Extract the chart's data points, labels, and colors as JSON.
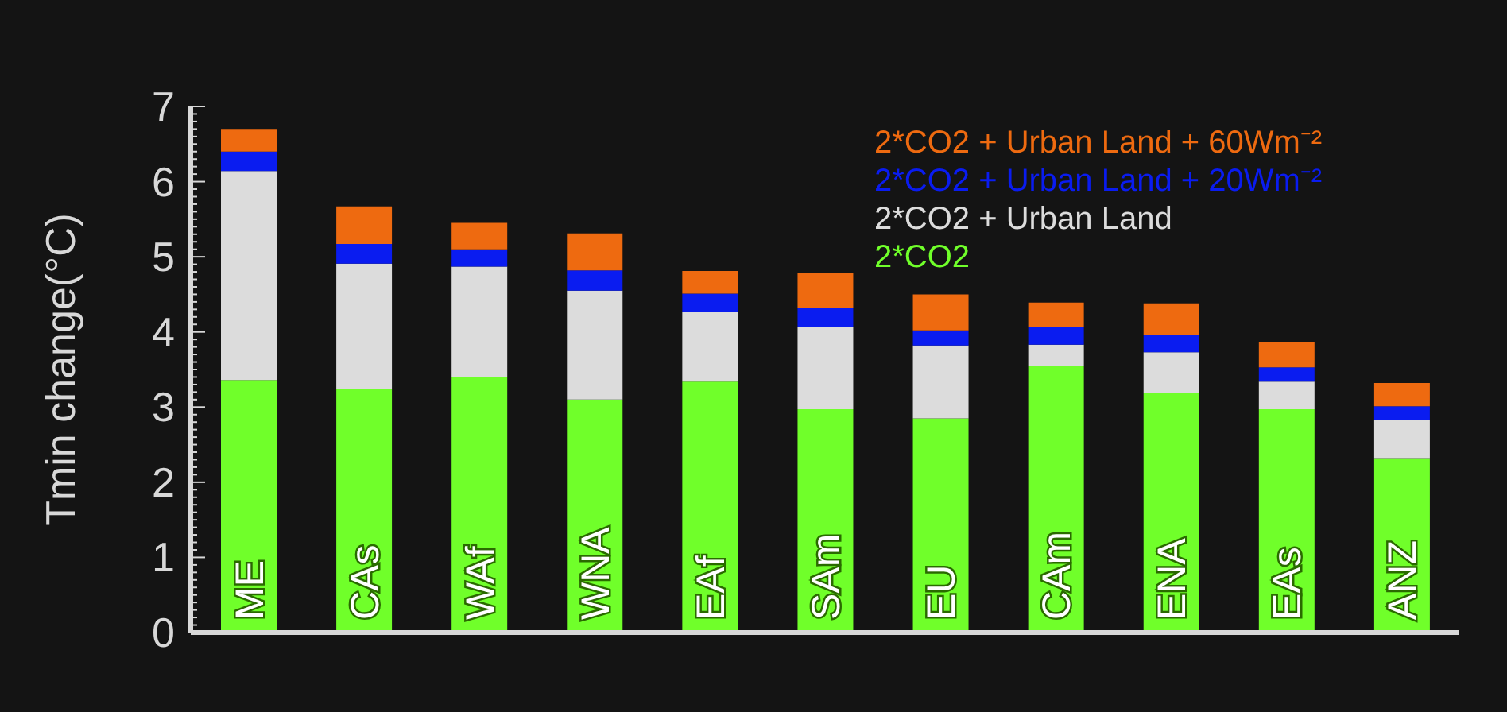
{
  "chart_data": {
    "type": "bar",
    "stacked": true,
    "ylabel": "Tmin change(°C)",
    "categories": [
      "ME",
      "CAs",
      "WAf",
      "WNA",
      "EAf",
      "SAm",
      "EU",
      "CAm",
      "ENA",
      "EAs",
      "ANZ"
    ],
    "series": [
      {
        "name": "2*CO2",
        "color": "#70ff2a",
        "values": [
          3.36,
          3.24,
          3.4,
          3.1,
          3.34,
          2.97,
          2.85,
          3.55,
          3.19,
          2.97,
          2.32
        ]
      },
      {
        "name": "2*CO2 + Urban Land",
        "color": "#dcdcdc",
        "values": [
          2.78,
          1.67,
          1.47,
          1.45,
          0.93,
          1.09,
          0.97,
          0.28,
          0.54,
          0.37,
          0.51
        ]
      },
      {
        "name": "2*CO2 + Urban Land + 20Wm⁻²",
        "color": "#0a1cf0",
        "values": [
          0.26,
          0.26,
          0.23,
          0.27,
          0.24,
          0.26,
          0.2,
          0.24,
          0.23,
          0.19,
          0.18
        ]
      },
      {
        "name": "2*CO2 + Urban Land + 60Wm⁻²",
        "color": "#ee6a10",
        "values": [
          0.3,
          0.5,
          0.35,
          0.49,
          0.3,
          0.46,
          0.48,
          0.32,
          0.42,
          0.34,
          0.31
        ]
      }
    ],
    "ylim": [
      0,
      7
    ],
    "yticks": [
      0,
      {
        "value": 0.1,
        "label": null
      },
      {
        "value": 0.2,
        "label": null
      },
      {
        "value": 0.3,
        "label": null
      },
      {
        "value": 0.4,
        "label": null
      },
      {
        "value": 0.5,
        "label": null
      },
      {
        "value": 0.6,
        "label": null
      },
      {
        "value": 0.7,
        "label": null
      },
      {
        "value": 0.8,
        "label": null
      },
      {
        "value": 0.9,
        "label": null
      },
      1,
      {
        "value": 1.1,
        "label": null
      },
      {
        "value": 1.2,
        "label": null
      },
      {
        "value": 1.3,
        "label": null
      },
      {
        "value": 1.4,
        "label": null
      },
      {
        "value": 1.5,
        "label": null
      },
      {
        "value": 1.6,
        "label": null
      },
      {
        "value": 1.7,
        "label": null
      },
      {
        "value": 1.8,
        "label": null
      },
      {
        "value": 1.9,
        "label": null
      },
      2,
      {
        "value": 2.1,
        "label": null
      },
      {
        "value": 2.2,
        "label": null
      },
      {
        "value": 2.3,
        "label": null
      },
      {
        "value": 2.4,
        "label": null
      },
      {
        "value": 2.5,
        "label": null
      },
      {
        "value": 2.6,
        "label": null
      },
      {
        "value": 2.7,
        "label": null
      },
      {
        "value": 2.8,
        "label": null
      },
      {
        "value": 2.9,
        "label": null
      },
      3,
      {
        "value": 3.1,
        "label": null
      },
      {
        "value": 3.2,
        "label": null
      },
      {
        "value": 3.3,
        "label": null
      },
      {
        "value": 3.4,
        "label": null
      },
      {
        "value": 3.5,
        "label": null
      },
      {
        "value": 3.6,
        "label": null
      },
      {
        "value": 3.7,
        "label": null
      },
      {
        "value": 3.8,
        "label": null
      },
      {
        "value": 3.9,
        "label": null
      },
      4,
      {
        "value": 4.1,
        "label": null
      },
      {
        "value": 4.2,
        "label": null
      },
      {
        "value": 4.3,
        "label": null
      },
      {
        "value": 4.4,
        "label": null
      },
      {
        "value": 4.5,
        "label": null
      },
      {
        "value": 4.6,
        "label": null
      },
      {
        "value": 4.7,
        "label": null
      },
      {
        "value": 4.8,
        "label": null
      },
      {
        "value": 4.9,
        "label": null
      },
      5,
      {
        "value": 5.1,
        "label": null
      },
      {
        "value": 5.2,
        "label": null
      },
      {
        "value": 5.3,
        "label": null
      },
      {
        "value": 5.4,
        "label": null
      },
      {
        "value": 5.5,
        "label": null
      },
      {
        "value": 5.6,
        "label": null
      },
      {
        "value": 5.7,
        "label": null
      },
      {
        "value": 5.8,
        "label": null
      },
      {
        "value": 5.9,
        "label": null
      },
      6,
      {
        "value": 6.1,
        "label": null
      },
      {
        "value": 6.2,
        "label": null
      },
      {
        "value": 6.3,
        "label": null
      },
      {
        "value": 6.4,
        "label": null
      },
      {
        "value": 6.5,
        "label": null
      },
      {
        "value": 6.6,
        "label": null
      },
      {
        "value": 6.7,
        "label": null
      },
      {
        "value": 6.8,
        "label": null
      },
      {
        "value": 6.9,
        "label": null
      },
      7
    ],
    "legend": "top right",
    "grid": false
  }
}
